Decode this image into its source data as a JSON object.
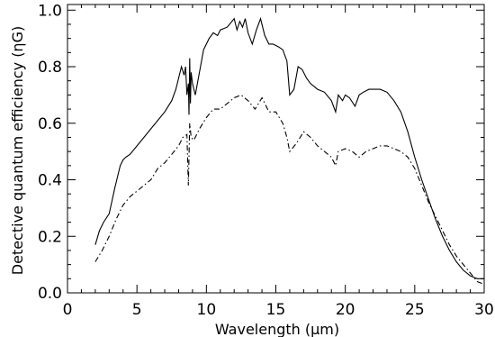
{
  "chart_data": {
    "type": "line",
    "title": "",
    "xlabel": "Wavelength (μm)",
    "ylabel": "Detective quantum efficiency (ηG)",
    "xlim": [
      0,
      30
    ],
    "ylim": [
      0,
      1.02
    ],
    "xticks": [
      0,
      5,
      10,
      15,
      20,
      25,
      30
    ],
    "yticks": [
      0.0,
      0.2,
      0.4,
      0.6,
      0.8,
      1.0
    ],
    "xtick_labels": [
      "0",
      "5",
      "10",
      "15",
      "20",
      "25",
      "30"
    ],
    "ytick_labels": [
      "0.0",
      "0.2",
      "0.4",
      "0.6",
      "0.8",
      "1.0"
    ],
    "grid": false,
    "legend": "none",
    "series": [
      {
        "style": "solid",
        "x": [
          2.0,
          2.3,
          2.6,
          3.0,
          3.4,
          3.8,
          4.0,
          4.2,
          4.5,
          5.0,
          5.5,
          6.0,
          6.5,
          7.0,
          7.5,
          7.8,
          8.0,
          8.2,
          8.4,
          8.5,
          8.6,
          8.7,
          8.75,
          8.8,
          8.85,
          8.9,
          9.0,
          9.2,
          9.5,
          9.8,
          10.2,
          10.5,
          10.8,
          11.0,
          11.5,
          12.0,
          12.2,
          12.4,
          12.6,
          12.8,
          13.0,
          13.3,
          13.6,
          13.9,
          14.2,
          14.5,
          14.8,
          15.2,
          15.5,
          15.8,
          16.0,
          16.3,
          16.6,
          16.9,
          17.2,
          17.5,
          18.0,
          18.5,
          19.0,
          19.3,
          19.5,
          19.8,
          20.0,
          20.3,
          20.7,
          21.0,
          21.3,
          21.7,
          22.0,
          22.5,
          23.0,
          23.5,
          24.0,
          24.5,
          25.0,
          25.5,
          26.0,
          26.5,
          27.0,
          27.5,
          28.0,
          28.5,
          29.0,
          29.5,
          30.0
        ],
        "y": [
          0.17,
          0.22,
          0.25,
          0.28,
          0.37,
          0.45,
          0.47,
          0.48,
          0.49,
          0.52,
          0.55,
          0.58,
          0.61,
          0.64,
          0.68,
          0.72,
          0.76,
          0.8,
          0.77,
          0.8,
          0.7,
          0.74,
          0.63,
          0.83,
          0.67,
          0.78,
          0.74,
          0.7,
          0.78,
          0.86,
          0.9,
          0.92,
          0.91,
          0.93,
          0.94,
          0.97,
          0.93,
          0.96,
          0.94,
          0.97,
          0.92,
          0.88,
          0.93,
          0.97,
          0.91,
          0.88,
          0.88,
          0.87,
          0.86,
          0.82,
          0.7,
          0.72,
          0.8,
          0.79,
          0.76,
          0.74,
          0.72,
          0.71,
          0.68,
          0.64,
          0.7,
          0.68,
          0.7,
          0.69,
          0.66,
          0.7,
          0.71,
          0.72,
          0.72,
          0.72,
          0.71,
          0.68,
          0.64,
          0.57,
          0.48,
          0.4,
          0.33,
          0.26,
          0.2,
          0.15,
          0.11,
          0.08,
          0.06,
          0.05,
          0.05
        ]
      },
      {
        "style": "dash-dot",
        "x": [
          2.0,
          2.5,
          3.0,
          3.5,
          4.0,
          4.5,
          5.0,
          5.5,
          6.0,
          6.5,
          7.0,
          7.5,
          8.0,
          8.3,
          8.6,
          8.7,
          8.8,
          8.9,
          9.1,
          9.5,
          10.0,
          10.5,
          11.0,
          11.5,
          12.0,
          12.5,
          13.0,
          13.5,
          14.0,
          14.5,
          15.0,
          15.5,
          15.8,
          16.0,
          16.5,
          17.0,
          17.5,
          18.0,
          18.5,
          19.0,
          19.3,
          19.5,
          20.0,
          20.5,
          21.0,
          21.5,
          22.0,
          22.5,
          23.0,
          23.5,
          24.0,
          24.5,
          25.0,
          25.5,
          26.0,
          26.5,
          27.0,
          27.5,
          28.0,
          28.5,
          29.0,
          29.5,
          30.0
        ],
        "y": [
          0.11,
          0.15,
          0.2,
          0.26,
          0.31,
          0.34,
          0.36,
          0.38,
          0.4,
          0.44,
          0.46,
          0.49,
          0.52,
          0.55,
          0.56,
          0.38,
          0.6,
          0.55,
          0.54,
          0.58,
          0.62,
          0.65,
          0.65,
          0.67,
          0.69,
          0.7,
          0.68,
          0.65,
          0.69,
          0.64,
          0.64,
          0.6,
          0.55,
          0.5,
          0.53,
          0.57,
          0.55,
          0.52,
          0.5,
          0.48,
          0.45,
          0.5,
          0.51,
          0.5,
          0.48,
          0.5,
          0.51,
          0.52,
          0.52,
          0.51,
          0.5,
          0.48,
          0.44,
          0.38,
          0.32,
          0.27,
          0.22,
          0.17,
          0.13,
          0.1,
          0.07,
          0.04,
          0.03
        ]
      }
    ]
  }
}
